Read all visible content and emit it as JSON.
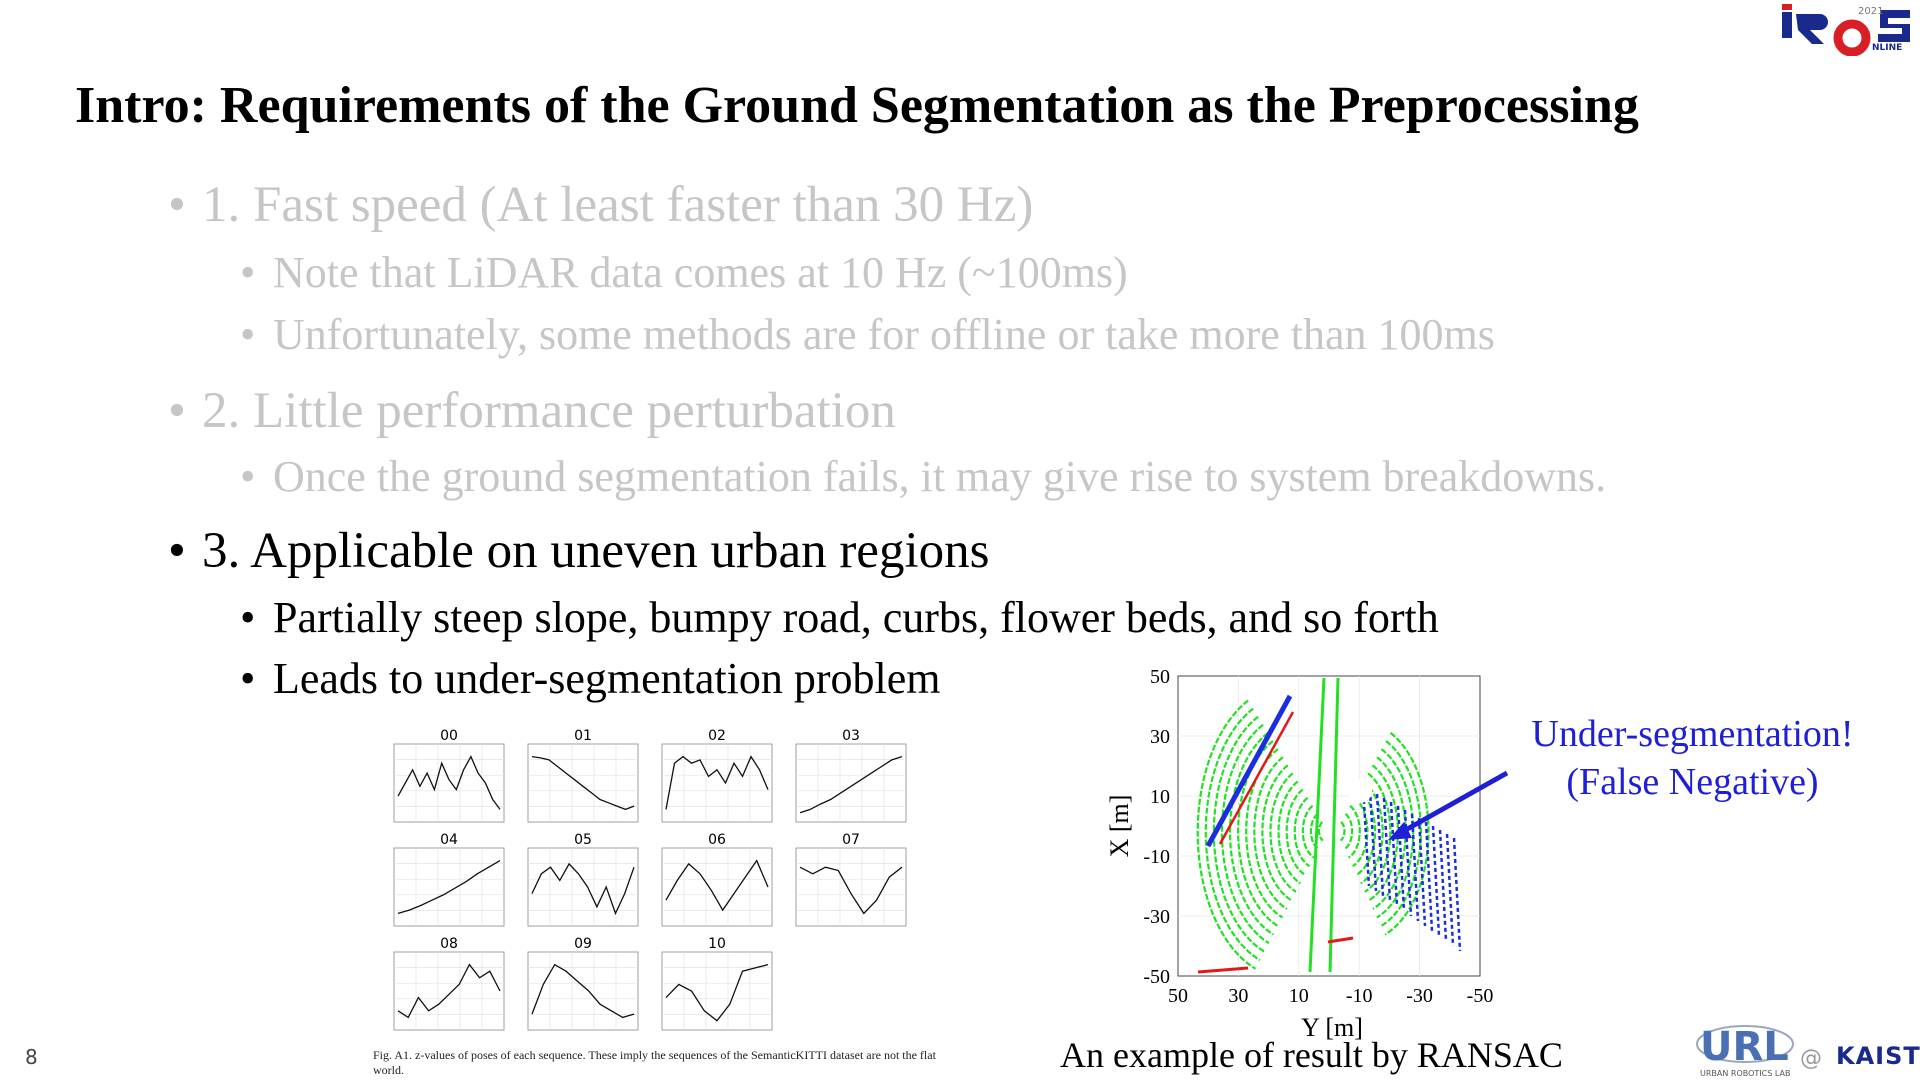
{
  "title": "Intro: Requirements of the Ground Segmentation as the Preprocessing",
  "bullets": {
    "b1": "1. Fast speed (At least faster than 30 Hz)",
    "b1a": "Note that LiDAR data comes at 10 Hz (~100ms)",
    "b1b": "Unfortunately, some methods are for offline or take more than 100ms",
    "b2": "2. Little performance perturbation",
    "b2a": "Once the ground segmentation fails, it may give rise to system breakdowns.",
    "b3": "3. Applicable on uneven urban regions",
    "b3a": "Partially steep slope, bumpy road, curbs, flower beds, and so forth",
    "b3b": "Leads to under-segmentation problem"
  },
  "plots": {
    "labels": [
      "00",
      "01",
      "02",
      "03",
      "04",
      "05",
      "06",
      "07",
      "08",
      "09",
      "10"
    ],
    "caption": "Fig. A1. z-values of poses of each sequence. These imply the sequences of the SemanticKITTI dataset are not the flat world."
  },
  "ransac": {
    "ylabel": "X [m]",
    "xlabel": "Y [m]",
    "yticks": [
      "50",
      "30",
      "10",
      "-10",
      "-30",
      "-50"
    ],
    "xticks": [
      "50",
      "30",
      "10",
      "-10",
      "-30",
      "-50"
    ],
    "annotation_line1": "Under-segmentation!",
    "annotation_line2": "(False Negative)",
    "caption": "An example of result by RANSAC"
  },
  "page_number": "8",
  "logos": {
    "iros": "IROS 2021 ONLINE",
    "url": "URL",
    "url_sub": "URBAN ROBOTICS LAB",
    "at": "@",
    "kaist": "KAIST"
  },
  "colors": {
    "annotation": "#1f1fd6",
    "dim_text": "#c6c6c6",
    "ground": "#22e022",
    "nonground": "#1a2ee0",
    "noise": "#e01a1a"
  }
}
